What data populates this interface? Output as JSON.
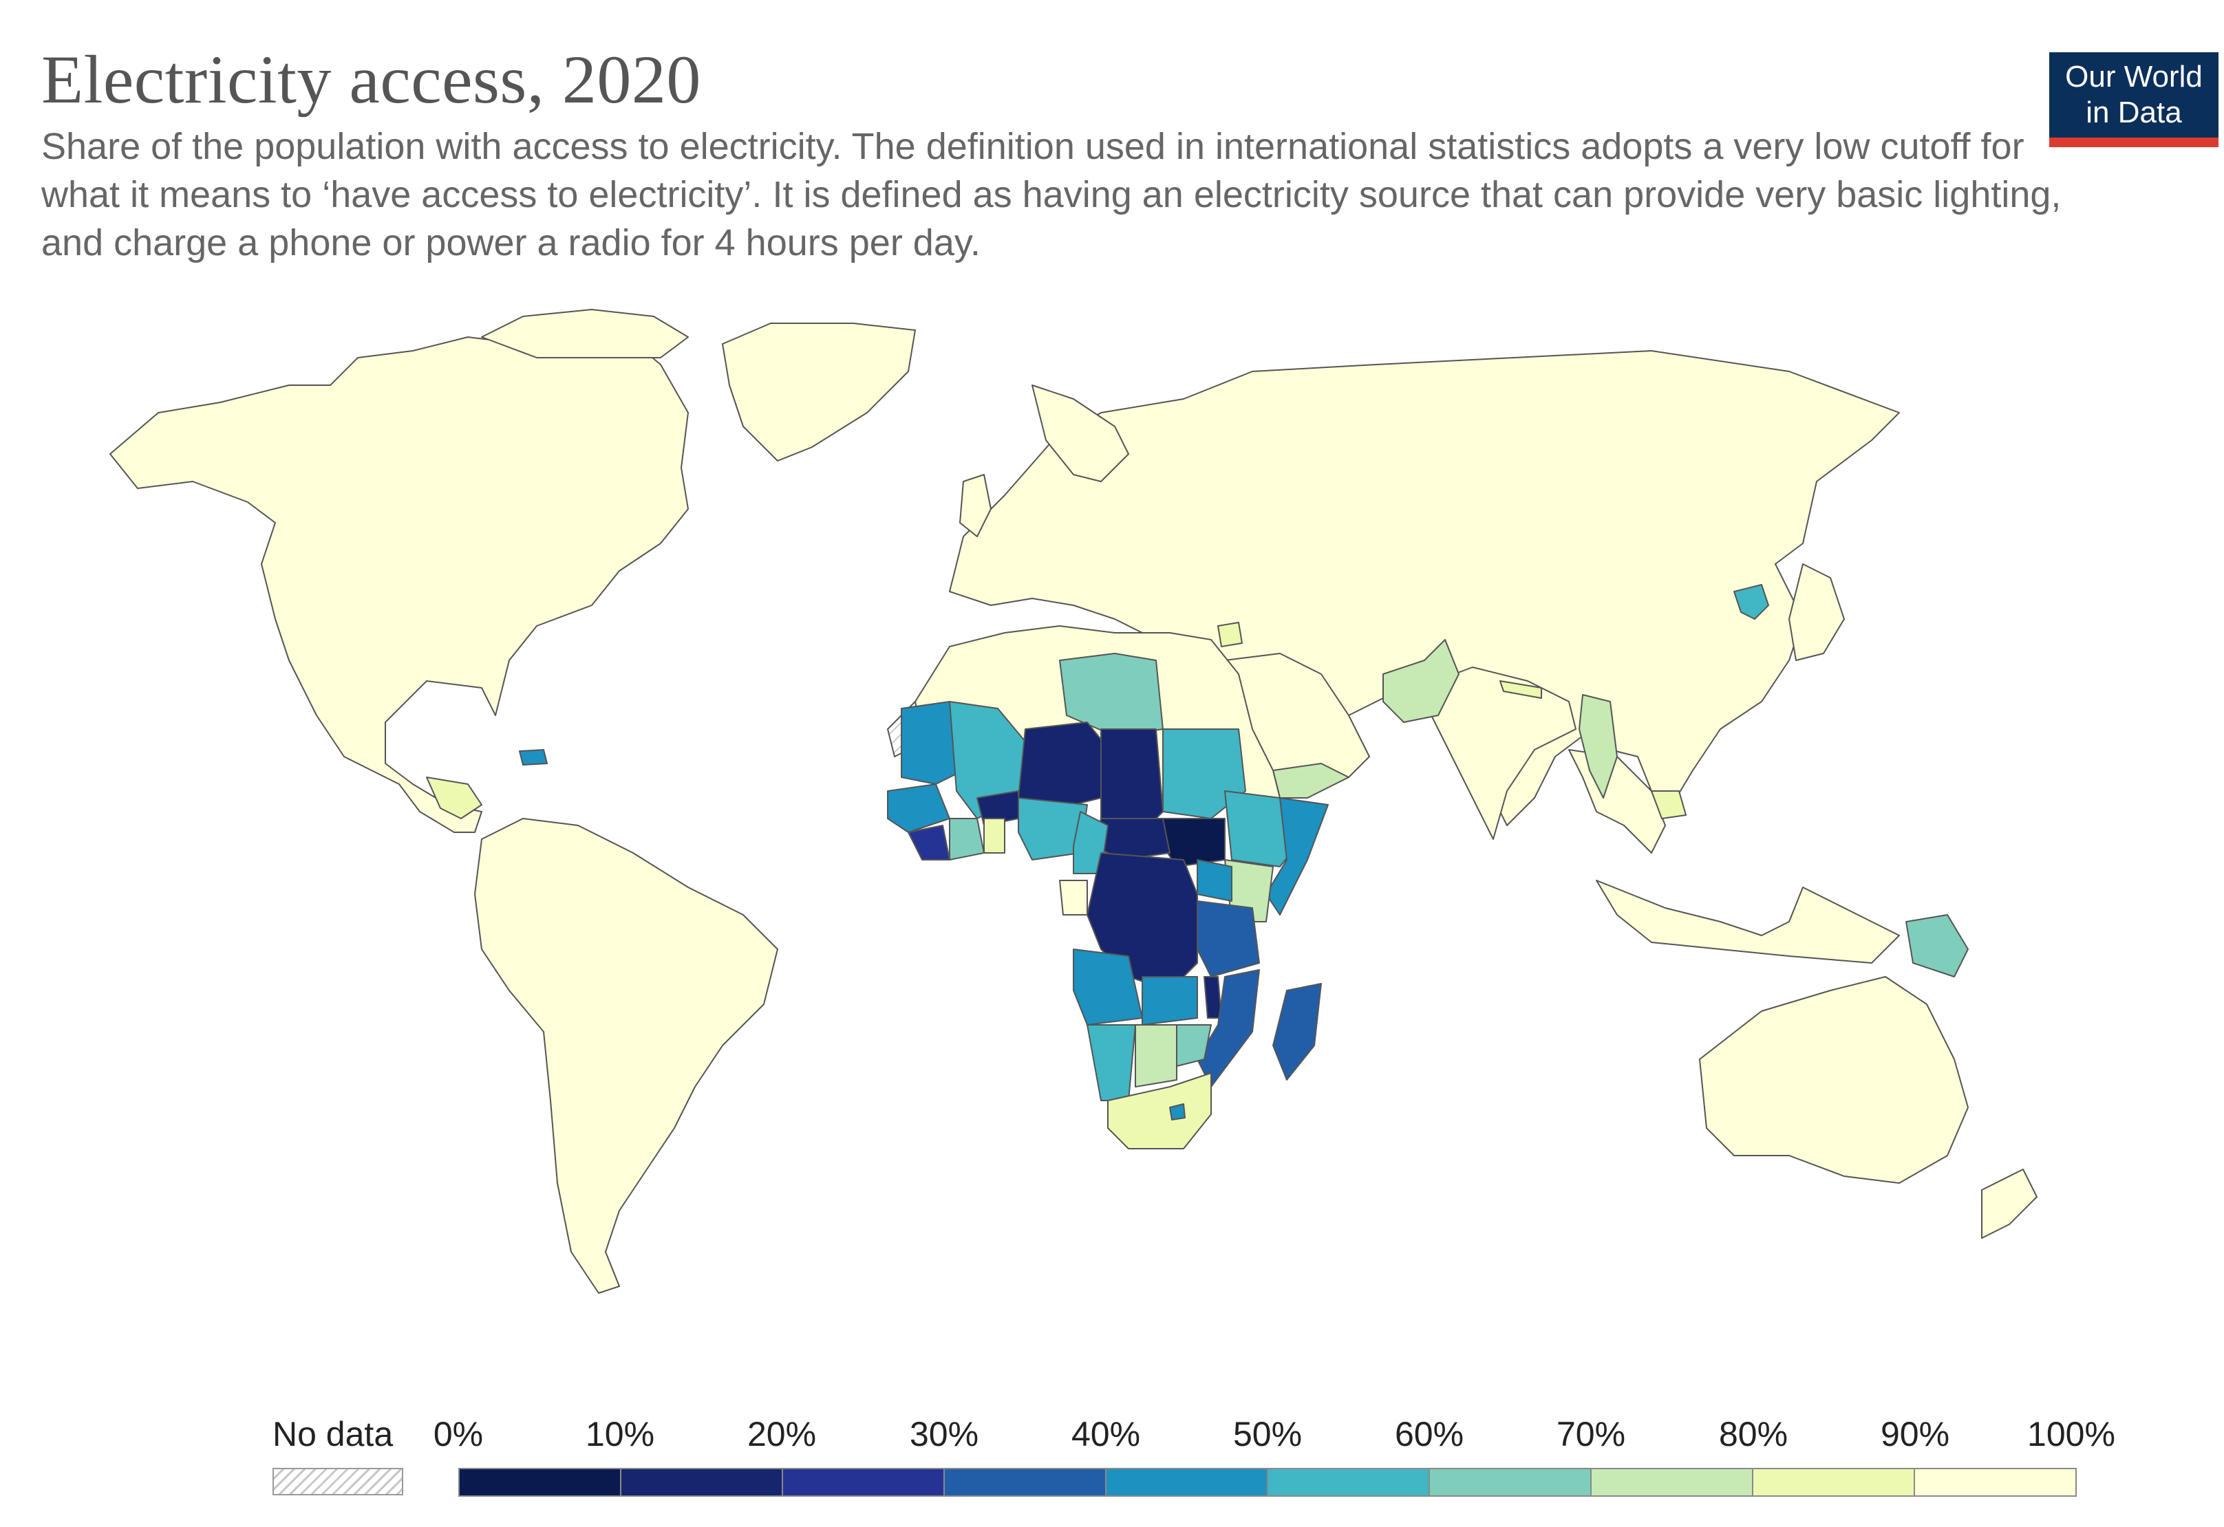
{
  "header": {
    "title": "Electricity access, 2020",
    "subtitle": "Share of the population with access to electricity. The definition used in international statistics adopts a very low cutoff for what it means to ‘have access to electricity’. It is defined as having an electricity source that can provide very basic lighting, and charge a phone or power a radio for 4 hours per day."
  },
  "logo": {
    "line1": "Our World",
    "line2": "in Data"
  },
  "legend": {
    "no_data_label": "No data",
    "ticks": [
      "0%",
      "10%",
      "20%",
      "30%",
      "40%",
      "50%",
      "60%",
      "70%",
      "80%",
      "90%",
      "100%"
    ],
    "bins": [
      {
        "range": "0-10",
        "color": "#0a1a4e"
      },
      {
        "range": "10-20",
        "color": "#16256e"
      },
      {
        "range": "20-30",
        "color": "#253494"
      },
      {
        "range": "30-40",
        "color": "#225ea8"
      },
      {
        "range": "40-50",
        "color": "#1d91c0"
      },
      {
        "range": "50-60",
        "color": "#41b6c4"
      },
      {
        "range": "60-70",
        "color": "#7fcdbb"
      },
      {
        "range": "70-80",
        "color": "#c7e9b4"
      },
      {
        "range": "80-90",
        "color": "#edf8b1"
      },
      {
        "range": "90-100",
        "color": "#ffffd9"
      }
    ]
  },
  "map": {
    "regions": [
      {
        "name": "north-america",
        "bin": 9
      },
      {
        "name": "south-america",
        "bin": 9
      },
      {
        "name": "europe-asia",
        "bin": 9
      },
      {
        "name": "north-africa",
        "bin": 9
      },
      {
        "name": "australia",
        "bin": 9
      },
      {
        "name": "mauritania",
        "bin": 4
      },
      {
        "name": "mali",
        "bin": 5
      },
      {
        "name": "niger",
        "bin": 1
      },
      {
        "name": "chad",
        "bin": 1
      },
      {
        "name": "libya",
        "bin": 6
      },
      {
        "name": "sudan",
        "bin": 5
      },
      {
        "name": "south-sudan",
        "bin": 0
      },
      {
        "name": "ethiopia",
        "bin": 5
      },
      {
        "name": "somalia",
        "bin": 4
      },
      {
        "name": "kenya",
        "bin": 7
      },
      {
        "name": "central-african-republic",
        "bin": 1
      },
      {
        "name": "dr-congo",
        "bin": 1
      },
      {
        "name": "nigeria",
        "bin": 5
      },
      {
        "name": "burkina-faso",
        "bin": 1
      },
      {
        "name": "guinea",
        "bin": 4
      },
      {
        "name": "sierra-leone-liberia",
        "bin": 2
      },
      {
        "name": "ghana",
        "bin": 8
      },
      {
        "name": "cote-divoire",
        "bin": 6
      },
      {
        "name": "cameroon",
        "bin": 5
      },
      {
        "name": "gabon",
        "bin": 9
      },
      {
        "name": "tanzania",
        "bin": 3
      },
      {
        "name": "uganda",
        "bin": 4
      },
      {
        "name": "angola",
        "bin": 4
      },
      {
        "name": "zambia",
        "bin": 4
      },
      {
        "name": "malawi",
        "bin": 1
      },
      {
        "name": "mozambique",
        "bin": 3
      },
      {
        "name": "madagascar",
        "bin": 3
      },
      {
        "name": "namibia",
        "bin": 5
      },
      {
        "name": "botswana",
        "bin": 7
      },
      {
        "name": "zimbabwe",
        "bin": 6
      },
      {
        "name": "south-africa",
        "bin": 8
      },
      {
        "name": "lesotho",
        "bin": 4
      },
      {
        "name": "yemen",
        "bin": 7
      },
      {
        "name": "pakistan",
        "bin": 7
      },
      {
        "name": "nepal",
        "bin": 8
      },
      {
        "name": "myanmar",
        "bin": 7
      },
      {
        "name": "cambodia",
        "bin": 8
      },
      {
        "name": "north-korea",
        "bin": 5
      },
      {
        "name": "papua-new-guinea",
        "bin": 6
      },
      {
        "name": "haiti",
        "bin": 4
      },
      {
        "name": "honduras",
        "bin": 8
      },
      {
        "name": "syria",
        "bin": 8
      },
      {
        "name": "western-sahara",
        "bin": -1
      }
    ]
  }
}
